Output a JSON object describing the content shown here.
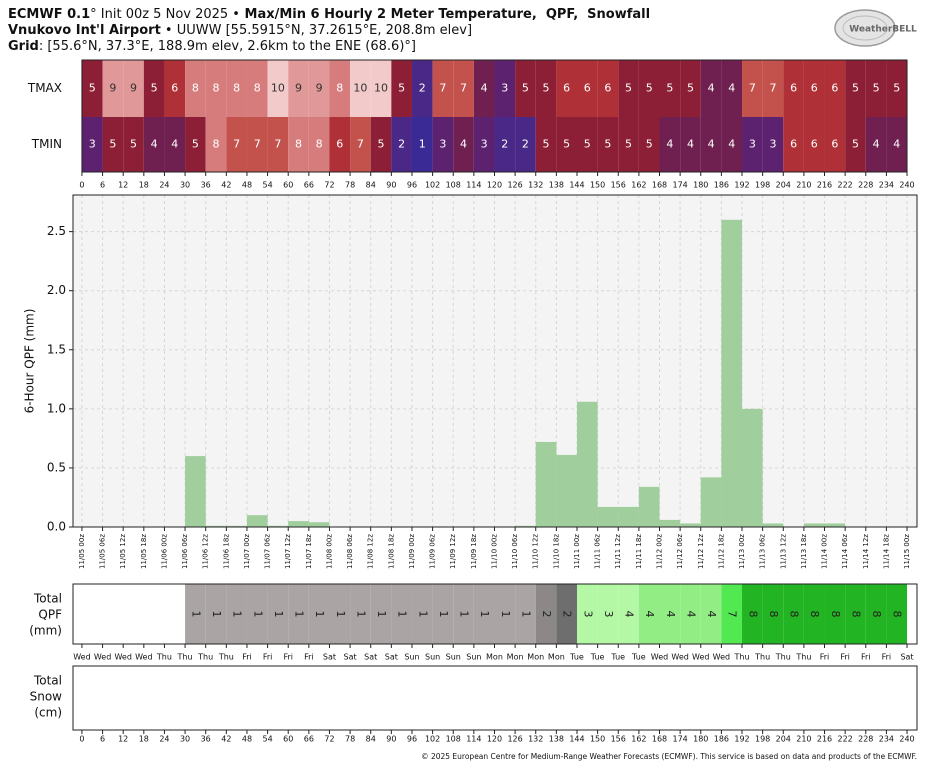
{
  "header": {
    "line1": [
      {
        "text": "ECMWF 0.1",
        "bold": true
      },
      {
        "text": "° Init 00z 5 Nov 2025 •"
      },
      {
        "text": " Max/Min 6 Hourly 2 Meter Temperature,  QPF,  Snowfall",
        "bold": true
      }
    ],
    "line2": [
      {
        "text": "Vnukovo Int'l Airport",
        "bold": true
      },
      {
        "text": " • UUWW [55.5915°N, 37.2615°E, 208.8m elev]"
      }
    ],
    "line3": [
      {
        "text": "Grid",
        "bold": true
      },
      {
        "text": ": [55.6°N, 37.3°E, 188.9m elev, 2.6km to the ENE (68.6)°]"
      }
    ],
    "logo": "WeatherBELL"
  },
  "hour_ticks": [
    0,
    6,
    12,
    18,
    24,
    30,
    36,
    42,
    48,
    54,
    60,
    66,
    72,
    78,
    84,
    90,
    96,
    102,
    108,
    114,
    120,
    126,
    132,
    138,
    144,
    150,
    156,
    162,
    168,
    174,
    180,
    186,
    192,
    198,
    204,
    210,
    216,
    222,
    228,
    234,
    240
  ],
  "temperature": {
    "rows": [
      {
        "name": "TMAX",
        "values": [
          5,
          9,
          9,
          5,
          6,
          8,
          8,
          8,
          8,
          10,
          9,
          9,
          8,
          10,
          10,
          5,
          2,
          7,
          7,
          4,
          3,
          5,
          5,
          6,
          6,
          6,
          5,
          5,
          5,
          5,
          4,
          4,
          7,
          7,
          6,
          6,
          6,
          5,
          5,
          5
        ]
      },
      {
        "name": "TMIN",
        "values": [
          3,
          5,
          5,
          4,
          4,
          5,
          8,
          7,
          7,
          7,
          8,
          8,
          6,
          7,
          5,
          2,
          1,
          3,
          4,
          3,
          2,
          2,
          5,
          5,
          5,
          5,
          5,
          5,
          4,
          4,
          4,
          4,
          3,
          3,
          6,
          6,
          6,
          5,
          4,
          4
        ]
      }
    ]
  },
  "chart_data": {
    "type": "bar",
    "ylabel": "6-Hour QPF (mm)",
    "x": [
      0,
      6,
      12,
      18,
      24,
      30,
      36,
      42,
      48,
      54,
      60,
      66,
      72,
      78,
      84,
      90,
      96,
      102,
      108,
      114,
      120,
      126,
      132,
      138,
      144,
      150,
      156,
      162,
      168,
      174,
      180,
      186,
      192,
      198,
      204,
      210,
      216,
      222,
      228,
      234
    ],
    "bar_width": 6,
    "values": [
      0,
      0,
      0,
      0,
      0,
      0.6,
      0.01,
      0.01,
      0.1,
      0.01,
      0.05,
      0.04,
      0,
      0,
      0,
      0,
      0,
      0,
      0,
      0,
      0,
      0.01,
      0.72,
      0.61,
      1.06,
      0.17,
      0.17,
      0.34,
      0.06,
      0.03,
      0.42,
      2.6,
      1.0,
      0.03,
      0,
      0.03,
      0.03,
      0,
      0,
      0
    ],
    "color": "#9ccb98",
    "xlim": [
      -2.6,
      242.9
    ],
    "ylim": [
      0,
      2.81
    ],
    "yticks": [
      {
        "value": 0,
        "label": "0.0"
      },
      0.5,
      {
        "value": 1,
        "label": "1.0"
      },
      1.5,
      {
        "value": 2,
        "label": "2.0"
      },
      2.5
    ],
    "xticks": [
      {
        "value": 0,
        "label": "11/05 00z"
      },
      {
        "value": 6,
        "label": "11/05 06z"
      },
      {
        "value": 12,
        "label": "11/05 12z"
      },
      {
        "value": 18,
        "label": "11/05 18z"
      },
      {
        "value": 24,
        "label": "11/06 00z"
      },
      {
        "value": 30,
        "label": "11/06 06z"
      },
      {
        "value": 36,
        "label": "11/06 12z"
      },
      {
        "value": 42,
        "label": "11/06 18z"
      },
      {
        "value": 48,
        "label": "11/07 00z"
      },
      {
        "value": 54,
        "label": "11/07 06z"
      },
      {
        "value": 60,
        "label": "11/07 12z"
      },
      {
        "value": 66,
        "label": "11/07 18z"
      },
      {
        "value": 72,
        "label": "11/08 00z"
      },
      {
        "value": 78,
        "label": "11/08 06z"
      },
      {
        "value": 84,
        "label": "11/08 12z"
      },
      {
        "value": 90,
        "label": "11/08 18z"
      },
      {
        "value": 96,
        "label": "11/09 00z"
      },
      {
        "value": 102,
        "label": "11/09 06z"
      },
      {
        "value": 108,
        "label": "11/09 12z"
      },
      {
        "value": 114,
        "label": "11/09 18z"
      },
      {
        "value": 120,
        "label": "11/10 00z"
      },
      {
        "value": 126,
        "label": "11/10 06z"
      },
      {
        "value": 132,
        "label": "11/10 12z"
      },
      {
        "value": 138,
        "label": "11/10 18z"
      },
      {
        "value": 144,
        "label": "11/11 00z"
      },
      {
        "value": 150,
        "label": "11/11 06z"
      },
      {
        "value": 156,
        "label": "11/11 12z"
      },
      {
        "value": 162,
        "label": "11/11 18z"
      },
      {
        "value": 168,
        "label": "11/12 00z"
      },
      {
        "value": 174,
        "label": "11/12 06z"
      },
      {
        "value": 180,
        "label": "11/12 12z"
      },
      {
        "value": 186,
        "label": "11/12 18z"
      },
      {
        "value": 192,
        "label": "11/13 00z"
      },
      {
        "value": 198,
        "label": "11/13 06z"
      },
      {
        "value": 204,
        "label": "11/13 12z"
      },
      {
        "value": 210,
        "label": "11/13 18z"
      },
      {
        "value": 216,
        "label": "11/14 00z"
      },
      {
        "value": 222,
        "label": "11/14 06z"
      },
      {
        "value": 228,
        "label": "11/14 12z"
      },
      {
        "value": 234,
        "label": "11/14 18z"
      },
      {
        "value": 240,
        "label": "11/15 00z"
      }
    ],
    "grid": true
  },
  "total_qpf": {
    "label": [
      "Total",
      "QPF",
      "(mm)"
    ],
    "values": [
      null,
      null,
      null,
      null,
      null,
      1,
      1,
      1,
      1,
      1,
      1,
      1,
      1,
      1,
      1,
      1,
      1,
      1,
      1,
      1,
      1,
      1,
      2,
      2,
      3,
      3,
      4,
      4,
      4,
      4,
      4,
      7,
      8,
      8,
      8,
      8,
      8,
      8,
      8,
      8
    ],
    "colors": [
      null,
      null,
      null,
      null,
      null,
      "#aaa4a4",
      "#aaa4a4",
      "#aaa4a4",
      "#aaa4a4",
      "#aaa4a4",
      "#aaa4a4",
      "#aaa4a4",
      "#aaa4a4",
      "#aaa4a4",
      "#aaa4a4",
      "#aaa4a4",
      "#aaa4a4",
      "#aaa4a4",
      "#aaa4a4",
      "#aaa4a4",
      "#aaa4a4",
      "#aaa4a4",
      "#8c8888",
      "#6e6e6e",
      "#b4f7a4",
      "#b4f7a4",
      "#b4f7a4",
      "#92ee84",
      "#92ee84",
      "#92ee84",
      "#92ee84",
      "#52e852",
      "#22b422",
      "#22b422",
      "#22b422",
      "#22b422",
      "#22b422",
      "#22b422",
      "#22b422",
      "#22b422"
    ],
    "day_labels": [
      "Wed",
      "Wed",
      "Wed",
      "Wed",
      "Thu",
      "Thu",
      "Thu",
      "Thu",
      "Fri",
      "Fri",
      "Fri",
      "Fri",
      "Sat",
      "Sat",
      "Sat",
      "Sat",
      "Sun",
      "Sun",
      "Sun",
      "Sun",
      "Mon",
      "Mon",
      "Mon",
      "Mon",
      "Tue",
      "Tue",
      "Tue",
      "Tue",
      "Wed",
      "Wed",
      "Wed",
      "Wed",
      "Thu",
      "Thu",
      "Thu",
      "Thu",
      "Fri",
      "Fri",
      "Fri",
      "Fri",
      "Sat"
    ]
  },
  "total_snow": {
    "label": [
      "Total",
      "Snow",
      "(cm)"
    ]
  },
  "footer": "© 2025 European Centre for Medium-Range Weather Forecasts (ECMWF). This service is based on data and products of the ECMWF."
}
